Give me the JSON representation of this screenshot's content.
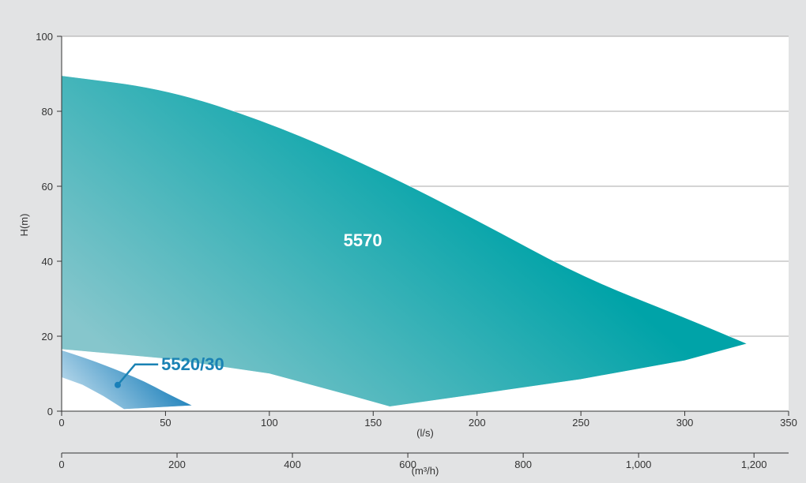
{
  "chart_data": {
    "type": "area",
    "ylabel": "H(m)",
    "xlabel": "(l/s)",
    "x2label": "(m³/h)",
    "xlim": [
      0,
      350
    ],
    "ylim": [
      0,
      100
    ],
    "x2lim": [
      0,
      1260
    ],
    "xticks": [
      "0",
      "50",
      "100",
      "150",
      "200",
      "250",
      "300",
      "350"
    ],
    "yticks": [
      "0",
      "20",
      "40",
      "60",
      "80",
      "100"
    ],
    "x2ticks": [
      "0",
      "200",
      "400",
      "600",
      "800",
      "1,000",
      "1,200"
    ],
    "grid": true,
    "colors": {
      "5570_dark": "#00a3a8",
      "5570_light": "#86c6cc",
      "5520_dark": "#1a7fba",
      "5520_light": "#a9d0e6",
      "label_5520": "#1a82b4",
      "label_5570": "#ffffff"
    },
    "series": [
      {
        "name": "5570",
        "upper": {
          "x": [
            0,
            50,
            100,
            150,
            200,
            250,
            300,
            330
          ],
          "y": [
            89.5,
            86,
            77,
            65,
            51,
            36,
            25,
            18
          ]
        },
        "lower": {
          "x": [
            0,
            50,
            100,
            140,
            158,
            200,
            250,
            300,
            330
          ],
          "y": [
            16.5,
            14,
            10,
            4,
            1.2,
            4.5,
            8.5,
            13.5,
            18
          ]
        }
      },
      {
        "name": "5520/30",
        "upper": {
          "x": [
            0,
            10,
            20,
            30,
            40,
            50,
            63
          ],
          "y": [
            16.3,
            14.5,
            12.5,
            10.3,
            8,
            5,
            1.5
          ]
        },
        "lower": {
          "x": [
            0,
            10,
            20,
            30,
            63
          ],
          "y": [
            9,
            7,
            4,
            0.5,
            1.5
          ]
        }
      }
    ],
    "annotations": [
      {
        "text": "5570",
        "x": 145,
        "y": 44
      },
      {
        "text": "5520/30",
        "x": 48,
        "y": 11,
        "point_x": 27,
        "point_y": 7
      }
    ]
  }
}
